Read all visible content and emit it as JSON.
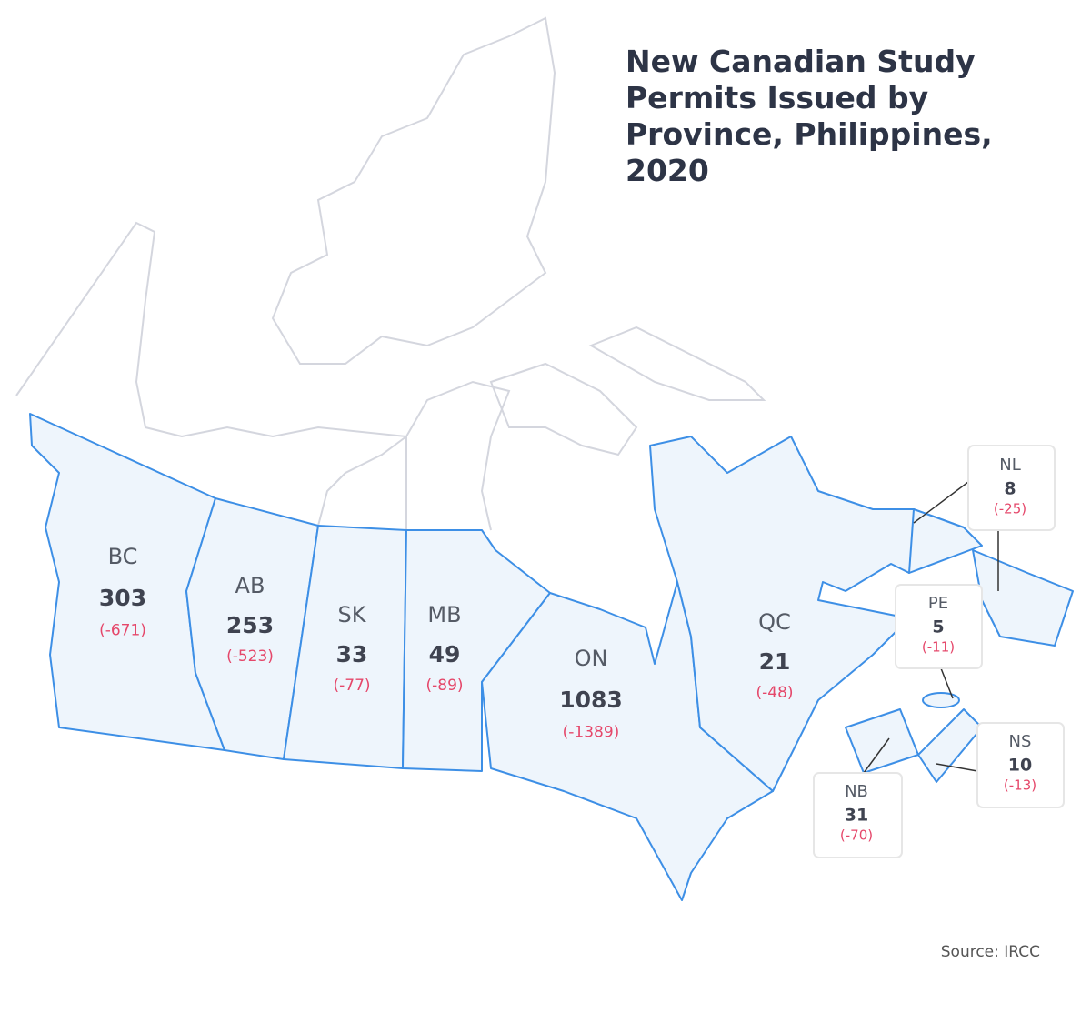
{
  "title": "New Canadian Study Permits Issued by Province, Philippines, 2020",
  "provinces": [
    {
      "abbr": "BC",
      "value": "303",
      "change": "(-671)"
    },
    {
      "abbr": "AB",
      "value": "253",
      "change": "(-523)"
    },
    {
      "abbr": "SK",
      "value": "33",
      "change": "(-77)"
    },
    {
      "abbr": "MB",
      "value": "49",
      "change": "(-89)"
    },
    {
      "abbr": "ON",
      "value": "1083",
      "change": "(-1389)"
    },
    {
      "abbr": "QC",
      "value": "21",
      "change": "(-48)"
    },
    {
      "abbr": "NL",
      "value": "8",
      "change": "(-25)"
    },
    {
      "abbr": "PE",
      "value": "5",
      "change": "(-11)"
    },
    {
      "abbr": "NS",
      "value": "10",
      "change": "(-13)"
    },
    {
      "abbr": "NB",
      "value": "31",
      "change": "(-70)"
    }
  ],
  "source": "Source: IRCC"
}
